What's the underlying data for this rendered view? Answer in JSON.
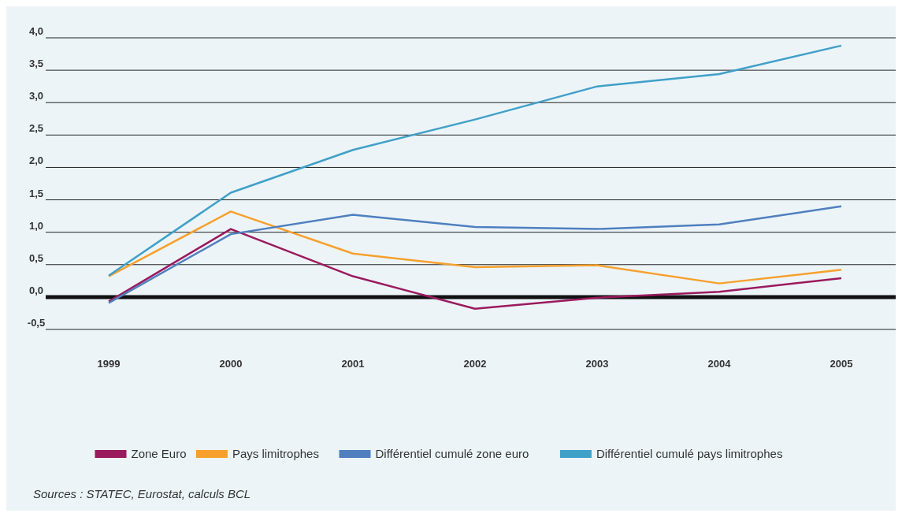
{
  "chart_data": {
    "type": "line",
    "categories": [
      "1999",
      "2000",
      "2001",
      "2002",
      "2003",
      "2004",
      "2005"
    ],
    "series": [
      {
        "name": "Zone Euro",
        "color": "#9b1a5e",
        "values": [
          -0.07,
          1.05,
          0.32,
          -0.18,
          -0.01,
          0.08,
          0.29
        ]
      },
      {
        "name": "Pays limitrophes",
        "color": "#f7a02c",
        "values": [
          0.32,
          1.32,
          0.67,
          0.46,
          0.49,
          0.21,
          0.42
        ]
      },
      {
        "name": "Différentiel cumulé zone euro",
        "color": "#4f7fbf",
        "values": [
          -0.09,
          0.97,
          1.27,
          1.08,
          1.05,
          1.12,
          1.4
        ]
      },
      {
        "name": "Différentiel cumulé pays limitrophes",
        "color": "#3fa0c8",
        "values": [
          0.33,
          1.61,
          2.27,
          2.74,
          3.25,
          3.44,
          3.88
        ]
      }
    ],
    "ylim": [
      -0.5,
      4.0
    ],
    "yticks": [
      {
        "value": -0.5,
        "label": "-0,5"
      },
      {
        "value": 0,
        "label": "0,0"
      },
      {
        "value": 0.5,
        "label": "0,5"
      },
      {
        "value": 1,
        "label": "1,0"
      },
      {
        "value": 1.5,
        "label": "1,5"
      },
      {
        "value": 2,
        "label": "2,0"
      },
      {
        "value": 2.5,
        "label": "2,5"
      },
      {
        "value": 3,
        "label": "3,0"
      },
      {
        "value": 3.5,
        "label": "3,5"
      },
      {
        "value": 4,
        "label": "4,0"
      }
    ],
    "grid": "y",
    "legend": "bottom",
    "marker": "none",
    "line_style": "solid",
    "annotations": [
      "Sources : STATEC, Eurostat, calculs BCL"
    ]
  }
}
